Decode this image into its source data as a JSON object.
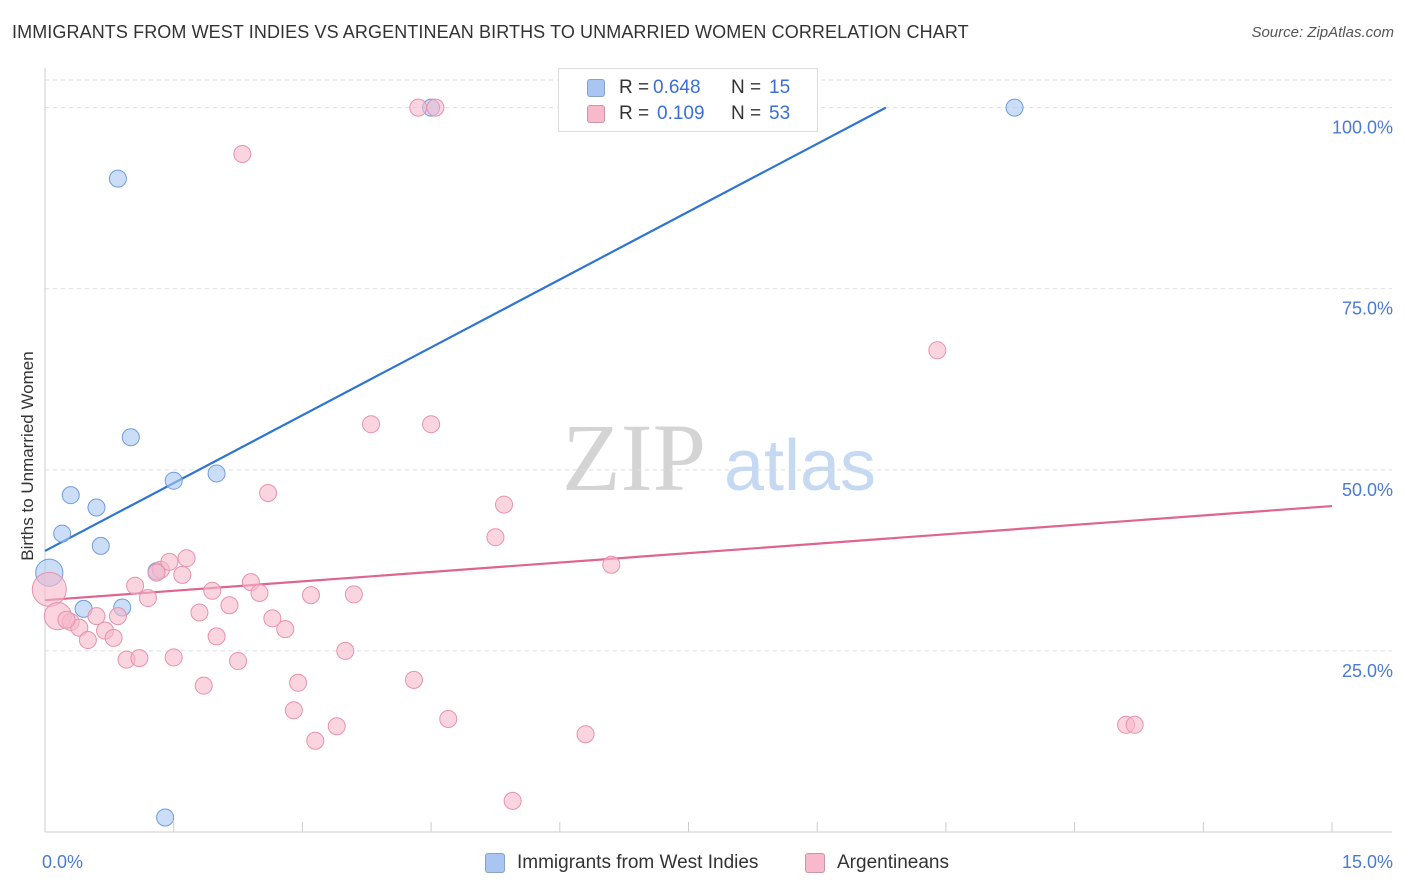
{
  "title": "IMMIGRANTS FROM WEST INDIES VS ARGENTINEAN BIRTHS TO UNMARRIED WOMEN CORRELATION CHART",
  "source": "Source: ZipAtlas.com",
  "watermark": {
    "zip": "ZIP",
    "atlas": "atlas"
  },
  "legend": {
    "rows": [
      {
        "r_label": "R =",
        "r_value": "0.648",
        "n_label": "N =",
        "n_value": "15",
        "color": "#a9c6f2"
      },
      {
        "r_label": "R =",
        "r_value": "0.109",
        "n_label": "N =",
        "n_value": "53",
        "color": "#f7b9cb"
      }
    ]
  },
  "bottom_legend": [
    {
      "label": "Immigrants from West Indies",
      "color": "#a9c6f2"
    },
    {
      "label": "Argentineans",
      "color": "#f7b9cb"
    }
  ],
  "chart_data": {
    "type": "scatter",
    "title": "IMMIGRANTS FROM WEST INDIES VS ARGENTINEAN BIRTHS TO UNMARRIED WOMEN CORRELATION CHART",
    "xlabel": "",
    "ylabel": "Births to Unmarried Women",
    "xlim": [
      0,
      15
    ],
    "ylim": [
      0,
      102
    ],
    "x_tick_labels": [
      "0.0%",
      "15.0%"
    ],
    "y_ticks": [
      25,
      50,
      75,
      100
    ],
    "y_tick_labels": [
      "25.0%",
      "50.0%",
      "75.0%",
      "100.0%"
    ],
    "grid": true,
    "series": [
      {
        "name": "Immigrants from West Indies",
        "color": "#a9c6f2",
        "stroke": "#6f9ddc",
        "trend_color": "#2e75d0",
        "trend": {
          "x": [
            0.0,
            9.8
          ],
          "y": [
            38.8,
            100
          ]
        },
        "points": [
          [
            0.05,
            35.8,
            1.6
          ],
          [
            0.2,
            41.2,
            1
          ],
          [
            0.3,
            46.5,
            1
          ],
          [
            0.6,
            44.8,
            1
          ],
          [
            0.65,
            39.5,
            1
          ],
          [
            0.45,
            30.8,
            1
          ],
          [
            0.9,
            31.0,
            1
          ],
          [
            0.85,
            90.2,
            1
          ],
          [
            1.0,
            54.5,
            1
          ],
          [
            1.3,
            36.0,
            1
          ],
          [
            1.5,
            48.5,
            1
          ],
          [
            2.0,
            49.5,
            1
          ],
          [
            1.4,
            2.0,
            1
          ],
          [
            4.5,
            100,
            1
          ],
          [
            11.3,
            100,
            1
          ]
        ]
      },
      {
        "name": "Argentineans",
        "color": "#f7b9cb",
        "stroke": "#e792ac",
        "trend_color": "#e06490",
        "trend": {
          "x": [
            0.0,
            15.0
          ],
          "y": [
            32.0,
            45.0
          ]
        },
        "points": [
          [
            0.05,
            33.5,
            2.0
          ],
          [
            0.15,
            29.8,
            1.6
          ],
          [
            0.3,
            29.0,
            1
          ],
          [
            0.4,
            28.2,
            1
          ],
          [
            0.5,
            26.5,
            1
          ],
          [
            0.6,
            29.8,
            1
          ],
          [
            0.7,
            27.8,
            1
          ],
          [
            0.8,
            26.8,
            1
          ],
          [
            0.85,
            29.8,
            1
          ],
          [
            0.95,
            23.8,
            1
          ],
          [
            1.05,
            34.0,
            1
          ],
          [
            1.1,
            24.0,
            1
          ],
          [
            1.2,
            32.3,
            1
          ],
          [
            1.35,
            36.2,
            1
          ],
          [
            1.45,
            37.3,
            1
          ],
          [
            1.5,
            24.1,
            1
          ],
          [
            1.6,
            35.5,
            1
          ],
          [
            1.65,
            37.8,
            1
          ],
          [
            1.8,
            30.3,
            1
          ],
          [
            1.85,
            20.2,
            1
          ],
          [
            1.95,
            33.3,
            1
          ],
          [
            2.0,
            27.0,
            1
          ],
          [
            2.15,
            31.3,
            1
          ],
          [
            2.25,
            23.6,
            1
          ],
          [
            2.4,
            34.5,
            1
          ],
          [
            2.5,
            33.0,
            1
          ],
          [
            2.6,
            46.8,
            1
          ],
          [
            2.65,
            29.5,
            1
          ],
          [
            2.8,
            28.0,
            1
          ],
          [
            2.9,
            16.8,
            1
          ],
          [
            2.95,
            20.6,
            1
          ],
          [
            3.1,
            32.7,
            1
          ],
          [
            3.15,
            12.6,
            1
          ],
          [
            3.4,
            14.6,
            1
          ],
          [
            3.5,
            25.0,
            1
          ],
          [
            3.6,
            32.8,
            1
          ],
          [
            3.8,
            56.3,
            1
          ],
          [
            4.3,
            21.0,
            1
          ],
          [
            4.5,
            56.3,
            1
          ],
          [
            4.7,
            15.6,
            1
          ],
          [
            4.35,
            100,
            1
          ],
          [
            4.55,
            100,
            1
          ],
          [
            2.3,
            93.6,
            1
          ],
          [
            5.25,
            40.7,
            1
          ],
          [
            5.35,
            45.2,
            1
          ],
          [
            5.45,
            4.3,
            1
          ],
          [
            6.3,
            13.5,
            1
          ],
          [
            6.6,
            36.9,
            1
          ],
          [
            10.4,
            66.5,
            1
          ],
          [
            12.6,
            14.8,
            1
          ],
          [
            12.7,
            14.8,
            1
          ],
          [
            0.25,
            29.3,
            1
          ],
          [
            1.3,
            35.8,
            1
          ]
        ]
      }
    ]
  }
}
